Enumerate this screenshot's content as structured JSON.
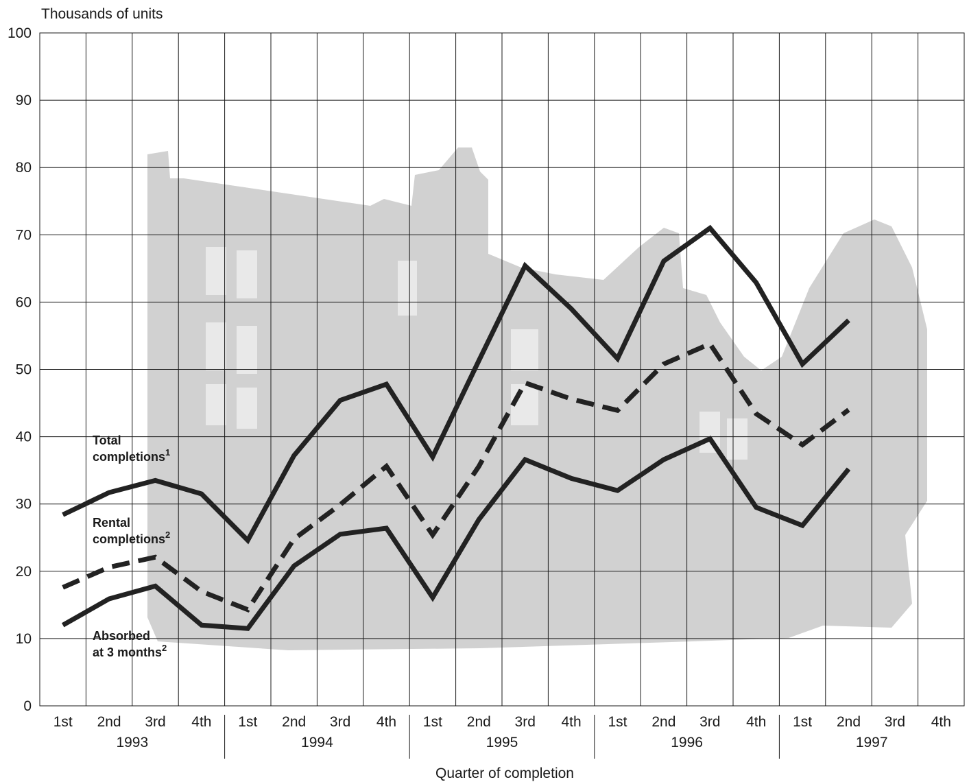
{
  "chart_data": {
    "type": "line",
    "ylabel": "Thousands of units",
    "xlabel": "Quarter of completion",
    "ylim": [
      0,
      100
    ],
    "yticks": [
      0,
      10,
      20,
      30,
      40,
      50,
      60,
      70,
      80,
      90,
      100
    ],
    "grid": true,
    "quarters": [
      "1st",
      "2nd",
      "3rd",
      "4th"
    ],
    "years": [
      "1993",
      "1994",
      "1995",
      "1996",
      "1997"
    ],
    "categories": [
      "1993 1st",
      "1993 2nd",
      "1993 3rd",
      "1993 4th",
      "1994 1st",
      "1994 2nd",
      "1994 3rd",
      "1994 4th",
      "1995 1st",
      "1995 2nd",
      "1995 3rd",
      "1995 4th",
      "1996 1st",
      "1996 2nd",
      "1996 3rd",
      "1996 4th",
      "1997 1st",
      "1997 2nd",
      "1997 3rd",
      "1997 4th"
    ],
    "series": [
      {
        "name": "Total completions",
        "footnote": "1",
        "style": "solid",
        "label_lines": [
          "Total",
          "completions"
        ],
        "values": [
          28.4,
          31.7,
          33.5,
          31.5,
          24.6,
          37.2,
          45.4,
          47.8,
          37.0,
          51.3,
          65.4,
          59.0,
          51.6,
          66.1,
          71.0,
          62.9,
          50.8,
          57.3,
          null,
          null
        ]
      },
      {
        "name": "Rental completions",
        "footnote": "2",
        "style": "dashed",
        "label_lines": [
          "Rental",
          "completions"
        ],
        "values": [
          17.6,
          20.6,
          22.1,
          17.0,
          14.3,
          24.8,
          29.9,
          35.6,
          25.4,
          35.6,
          48.0,
          45.6,
          43.9,
          50.8,
          53.8,
          43.4,
          38.8,
          44.0,
          null,
          null
        ]
      },
      {
        "name": "Absorbed at 3 months",
        "footnote": "2",
        "style": "solid",
        "label_lines": [
          "Absorbed",
          "at 3 months"
        ],
        "values": [
          12.0,
          15.9,
          17.8,
          12.0,
          11.5,
          20.8,
          25.5,
          26.4,
          16.1,
          27.7,
          36.6,
          33.8,
          32.0,
          36.6,
          39.7,
          29.5,
          26.8,
          35.2,
          null,
          null
        ]
      }
    ],
    "colors": {
      "line": "#222222",
      "grid": "#1a1a1a",
      "background_art": "#cfcfcf"
    }
  }
}
